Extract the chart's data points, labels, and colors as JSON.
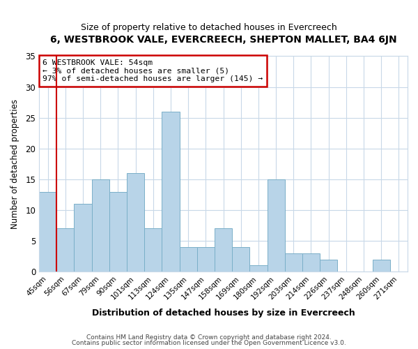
{
  "title": "6, WESTBROOK VALE, EVERCREECH, SHEPTON MALLET, BA4 6JN",
  "subtitle": "Size of property relative to detached houses in Evercreech",
  "xlabel": "Distribution of detached houses by size in Evercreech",
  "ylabel": "Number of detached properties",
  "bar_labels": [
    "45sqm",
    "56sqm",
    "67sqm",
    "79sqm",
    "90sqm",
    "101sqm",
    "113sqm",
    "124sqm",
    "135sqm",
    "147sqm",
    "158sqm",
    "169sqm",
    "180sqm",
    "192sqm",
    "203sqm",
    "214sqm",
    "226sqm",
    "237sqm",
    "248sqm",
    "260sqm",
    "271sqm"
  ],
  "bar_values": [
    13,
    7,
    11,
    15,
    13,
    16,
    7,
    26,
    4,
    4,
    7,
    4,
    1,
    15,
    3,
    3,
    2,
    0,
    0,
    2,
    0
  ],
  "bar_color": "#b8d4e8",
  "bar_edge_color": "#7aafc8",
  "highlight_color": "#cc0000",
  "annotation_title": "6 WESTBROOK VALE: 54sqm",
  "annotation_line1": "← 3% of detached houses are smaller (5)",
  "annotation_line2": "97% of semi-detached houses are larger (145) →",
  "annotation_box_color": "#ffffff",
  "annotation_box_edge": "#cc0000",
  "ylim": [
    0,
    35
  ],
  "yticks": [
    0,
    5,
    10,
    15,
    20,
    25,
    30,
    35
  ],
  "footer1": "Contains HM Land Registry data © Crown copyright and database right 2024.",
  "footer2": "Contains public sector information licensed under the Open Government Licence v3.0.",
  "bg_color": "#ffffff",
  "grid_color": "#c8d8e8"
}
